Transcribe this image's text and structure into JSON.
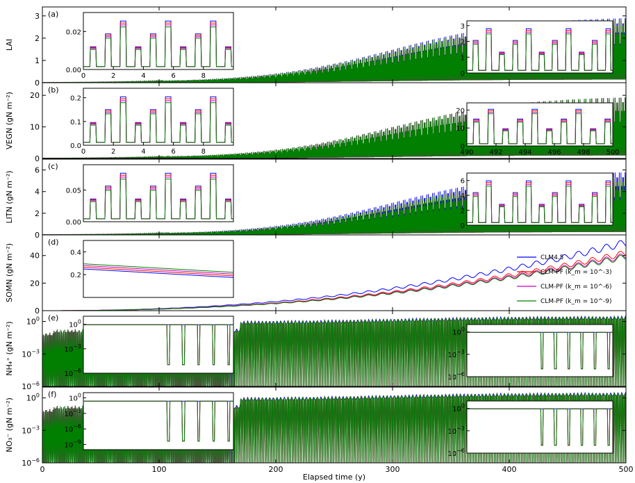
{
  "chart_data": {
    "type": "line",
    "xlabel": "Elapsed time (y)",
    "xlim": [
      0,
      500
    ],
    "x_ticks": [
      "0",
      "100",
      "200",
      "300",
      "400",
      "500"
    ],
    "colors": {
      "CLM4.5": "#0000ff",
      "CLM-PF-3": "#ff0000",
      "CLM-PF-6": "#bf00bf",
      "CLM-PF-9": "#007f00"
    },
    "legend": {
      "placement": "right of panel (d)",
      "entries": [
        {
          "label": "CLM4.5",
          "color": "#0000ff"
        },
        {
          "label": "CLM-PF (k_m = 10^-3)",
          "color": "#ff0000"
        },
        {
          "label": "CLM-PF (k_m = 10^-6)",
          "color": "#bf00bf"
        },
        {
          "label": "CLM-PF (k_m = 10^-9)",
          "color": "#007f00"
        }
      ]
    },
    "panels": [
      {
        "id": "a",
        "label": "(a)",
        "ylabel": "LAI",
        "scale": "linear",
        "ylim": [
          0,
          3.4
        ],
        "y_ticks": [
          "0",
          "1",
          "2",
          "3"
        ],
        "series_envelope": {
          "CLM4.5": 3.0,
          "CLM-PF": 2.9
        },
        "insets": [
          {
            "xlim": [
              0,
              10
            ],
            "ylim": [
              0,
              0.03
            ],
            "x_ticks": [
              "0",
              "2",
              "4",
              "6",
              "8"
            ],
            "y_ticks": [
              "0.00",
              "0.02"
            ]
          },
          {
            "xlim": [
              490,
              501
            ],
            "ylim": [
              0,
              3.3
            ],
            "x_ticks": [],
            "y_ticks": [
              "0",
              "1",
              "2",
              "3"
            ]
          }
        ]
      },
      {
        "id": "b",
        "label": "(b)",
        "ylabel": "VEGN (gN m⁻²)",
        "scale": "linear",
        "ylim": [
          0,
          24
        ],
        "y_ticks": [
          "0",
          "10",
          "20"
        ],
        "series_envelope": {
          "CLM4.5": 20,
          "CLM-PF": 20
        },
        "insets": [
          {
            "xlim": [
              0,
              10
            ],
            "ylim": [
              0,
              0.24
            ],
            "x_ticks": [
              "0",
              "2",
              "4",
              "6",
              "8"
            ],
            "y_ticks": [
              "0.0",
              "0.1",
              "0.2"
            ]
          },
          {
            "xlim": [
              490,
              500
            ],
            "ylim": [
              0,
              24
            ],
            "x_ticks": [
              "490",
              "492",
              "494",
              "496",
              "498",
              "500"
            ],
            "y_ticks": [
              "0",
              "10",
              "20"
            ]
          }
        ]
      },
      {
        "id": "c",
        "label": "(c)",
        "ylabel": "LITN (gN m⁻²)",
        "scale": "linear",
        "ylim": [
          0,
          7
        ],
        "y_ticks": [
          "0",
          "2",
          "4",
          "6"
        ],
        "series_envelope": {
          "CLM4.5": 6.0,
          "CLM-PF": 5.5
        },
        "insets": [
          {
            "xlim": [
              0,
              10
            ],
            "ylim": [
              0,
              0.09
            ],
            "x_ticks": [],
            "y_ticks": [
              "0.00",
              "0.05"
            ]
          },
          {
            "xlim": [
              490,
              501
            ],
            "ylim": [
              0,
              7
            ],
            "x_ticks": [],
            "y_ticks": [
              "0",
              "2",
              "4",
              "6"
            ]
          }
        ]
      },
      {
        "id": "d",
        "label": "(d)",
        "ylabel": "SOMN (gN m⁻²)",
        "scale": "linear",
        "ylim": [
          0,
          55
        ],
        "y_ticks": [
          "0",
          "20",
          "40"
        ],
        "series_envelope": {
          "CLM4.5": 52,
          "CLM-PF-3": 44,
          "CLM-PF-6": 42,
          "CLM-PF-9": 41
        },
        "insets": [
          {
            "xlim": [
              0,
              10
            ],
            "ylim": [
              0,
              0.5
            ],
            "x_ticks": [],
            "y_ticks": [
              "0.2",
              "0.4"
            ]
          }
        ]
      },
      {
        "id": "e",
        "label": "(e)",
        "ylabel": "NH₄⁺ (gN m⁻²)",
        "scale": "log",
        "ylim_exp": [
          -6,
          1
        ],
        "y_ticks": [
          "10^0",
          "10^-3",
          "10^-6"
        ],
        "insets": [
          {
            "xlim": [
              0,
              10
            ],
            "ylim_exp": [
              -6,
              1
            ],
            "y_ticks": [
              "10^0",
              "10^-3",
              "10^-6"
            ]
          },
          {
            "xlim": [
              490,
              501
            ],
            "ylim_exp": [
              -6,
              1
            ],
            "y_ticks": [
              "10^0",
              "10^-3",
              "10^-6"
            ]
          }
        ]
      },
      {
        "id": "f",
        "label": "(f)",
        "ylabel": "NO₃⁻ (gN m⁻²)",
        "scale": "log",
        "ylim_exp": [
          -6,
          1
        ],
        "y_ticks": [
          "10^0",
          "10^-3",
          "10^-6"
        ],
        "insets": [
          {
            "xlim": [
              0,
              10
            ],
            "ylim_exp": [
              -10,
              1
            ],
            "y_ticks": [
              "10^0",
              "10^-3",
              "10^-6",
              "10^-9"
            ]
          },
          {
            "xlim": [
              490,
              501
            ],
            "ylim_exp": [
              -6,
              1
            ],
            "y_ticks": [
              "10^0",
              "10^-3",
              "10^-6"
            ]
          }
        ]
      }
    ]
  }
}
